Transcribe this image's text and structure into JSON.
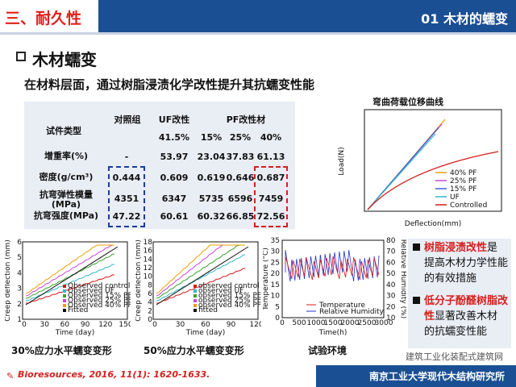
{
  "header": {
    "section": "三、耐久性",
    "title": "01 木材的蠕变"
  },
  "heading": "木材蠕变",
  "subtitle": "在材料层面，通过树脂浸渍化学改性提升其抗蠕变性能",
  "table": {
    "col_type": "试件类型",
    "col_ctrl": "对照组",
    "col_uf": "UF改性",
    "col_pf": "PF改性材",
    "conc": [
      "41.5%",
      "15%",
      "25%",
      "40%"
    ],
    "rows": [
      {
        "label": "增重率(%)",
        "v": [
          "-",
          "53.97",
          "23.04",
          "37.83",
          "61.13"
        ]
      },
      {
        "label": "密度(g/cm³)",
        "v": [
          "0.444",
          "0.609",
          "0.619",
          "0.646",
          "0.687"
        ]
      },
      {
        "label": "抗弯弹性模量\n(MPa)",
        "v": [
          "4351",
          "6347",
          "5735",
          "6596",
          "7459"
        ]
      },
      {
        "label": "抗弯强度(MPa)",
        "v": [
          "47.22",
          "60.61",
          "60.32",
          "66.85",
          "72.56"
        ]
      }
    ]
  },
  "load_chart": {
    "title": "弯曲荷载位移曲线",
    "xlabel": "Deflection(mm)",
    "ylabel": "Load(N)",
    "legend": [
      "40% PF",
      "25% PF",
      "15% PF",
      "UF",
      "Controlled"
    ],
    "colors": [
      "#e8a000",
      "#c848d8",
      "#4060d8",
      "#30b8c8",
      "#d81818"
    ]
  },
  "captions": {
    "c1": "30%应力水平蠕变变形",
    "c2": "50%应力水平蠕变变形",
    "c3": "试验环境"
  },
  "creep1": {
    "ylabel": "Creep deflection (mm)",
    "xlabel": "Time (day)",
    "xticks": [
      "0",
      "30",
      "60",
      "90",
      "120",
      "150"
    ],
    "yticks": [
      "1",
      "2",
      "3",
      "4",
      "5",
      "6"
    ],
    "legend": [
      "Observed control",
      "Observed UF",
      "Observed 15% PF",
      "Observed 25% PF",
      "Observed 40% PF",
      "Fitted"
    ]
  },
  "creep2": {
    "ylabel": "Creep deflection (mm)",
    "xlabel": "Time (day)",
    "xticks": [
      "0",
      "30",
      "60",
      "90",
      "120"
    ],
    "yticks": [
      "0",
      "2",
      "4",
      "6",
      "8",
      "10",
      "12",
      "14",
      "16",
      "18"
    ],
    "legend": [
      "observed control",
      "observed UF",
      "observed 15% PF",
      "observed 25% PF",
      "observed 40% PF",
      "fitted"
    ]
  },
  "env": {
    "ylabel": "Temperature (°C)",
    "y2label": "Relative Humidity (%)",
    "xlabel": "Time(h)",
    "xticks": [
      "0",
      "500",
      "1000",
      "1500",
      "2000",
      "2500",
      "3000"
    ],
    "yticks": [
      "0",
      "5",
      "10",
      "15",
      "20",
      "25",
      "30",
      "35"
    ],
    "y2ticks": [
      "10",
      "20",
      "30",
      "40",
      "50",
      "60",
      "70",
      "80"
    ],
    "legend": [
      "Temperature",
      "Relative Humidity"
    ]
  },
  "info": {
    "i1a": "树脂浸渍改性",
    "i1b": "是提高木材力学性能的有效措施",
    "i2a": "低分子酚醛树脂改性",
    "i2b": "显著改善木材的抗蠕变性能"
  },
  "ref": "Bioresources, 2016, 11(1): 1620-1633.",
  "watermark": "建筑工业化装配式建筑网",
  "footer": "南京工业大学现代木结构研究所"
}
